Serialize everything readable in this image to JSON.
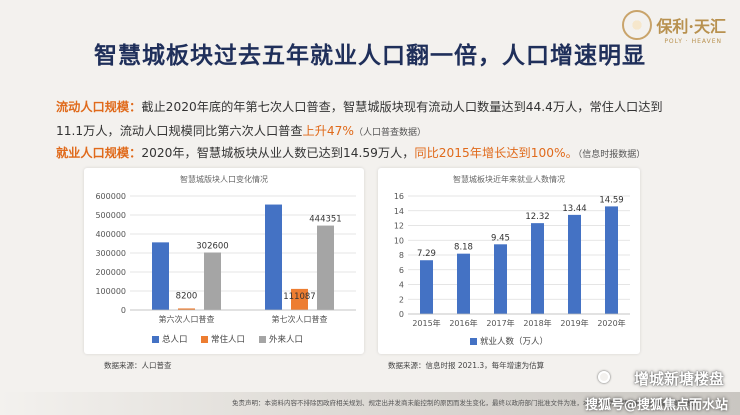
{
  "header": {
    "title": "智慧城板块过去五年就业人口翻一倍，人口增速明显",
    "logo_text": "保利·天汇",
    "logo_sub": "POLY · HEAVEN"
  },
  "para1": {
    "label": "流动人口规模：",
    "text_a": "截止2020年底的年第七次人口普查，智慧城版块现有流动人口数量达到44.4万人，常住人口达到",
    "text_b": "11.1万人，流动人口规模同比第六次人口普查",
    "highlight": "上升47%",
    "note": "（人口普查数据）"
  },
  "para2": {
    "label": "就业人口规模：",
    "text_a": "2020年，智慧城板块从业人数已达到14.59万人，",
    "highlight": "同比2015年增长达到100%。",
    "note": "（信息时报数据）"
  },
  "chart_data": [
    {
      "type": "bar",
      "title": "智慧城版块人口变化情况",
      "categories": [
        "第六次人口普查",
        "第七次人口普查"
      ],
      "series": [
        {
          "name": "总人口",
          "values": [
            356000,
            555000
          ],
          "color": "#4472c4"
        },
        {
          "name": "常住人口",
          "values": [
            8200,
            111087
          ],
          "color": "#ed7d31"
        },
        {
          "name": "外来人口",
          "values": [
            302600,
            444351
          ],
          "color": "#a5a5a5"
        }
      ],
      "data_labels": [
        {
          "series": 1,
          "category": 0,
          "text": "8200"
        },
        {
          "series": 2,
          "category": 0,
          "text": "302600"
        },
        {
          "series": 1,
          "category": 1,
          "text": "111087"
        },
        {
          "series": 2,
          "category": 1,
          "text": "444351"
        }
      ],
      "ylim": [
        0,
        600000
      ],
      "yticks": [
        "0",
        "100000",
        "200000",
        "300000",
        "400000",
        "500000",
        "600000"
      ],
      "legend": "bottom"
    },
    {
      "type": "bar",
      "title": "智慧城板块近年来就业人数情况",
      "categories": [
        "2015年",
        "2016年",
        "2017年",
        "2018年",
        "2019年",
        "2020年"
      ],
      "series": [
        {
          "name": "就业人数（万人）",
          "values": [
            7.29,
            8.18,
            9.45,
            12.32,
            13.44,
            14.59
          ],
          "color": "#4472c4"
        }
      ],
      "data_labels": [
        "7.29",
        "8.18",
        "9.45",
        "12.32",
        "13.44",
        "14.59"
      ],
      "ylim": [
        0,
        16
      ],
      "yticks": [
        "0",
        "2",
        "4",
        "6",
        "8",
        "10",
        "12",
        "14",
        "16"
      ],
      "legend": "bottom"
    }
  ],
  "sources": {
    "left": "数据来源：人口普查",
    "right": "数据来源：信息时报 2021.3，每年增速为估算"
  },
  "footer": {
    "disclaimer": "免责声明：本资料内容不排除因政府相关规划、规定出并发商未能控制的原因而发生变化，最终以政府部门批准文件为准，本资料仅为宣传资料，具有最终解释权。",
    "watermark_name": "增城新塘楼盘",
    "watermark_line": "搜狐号@搜狐焦点而水站"
  }
}
